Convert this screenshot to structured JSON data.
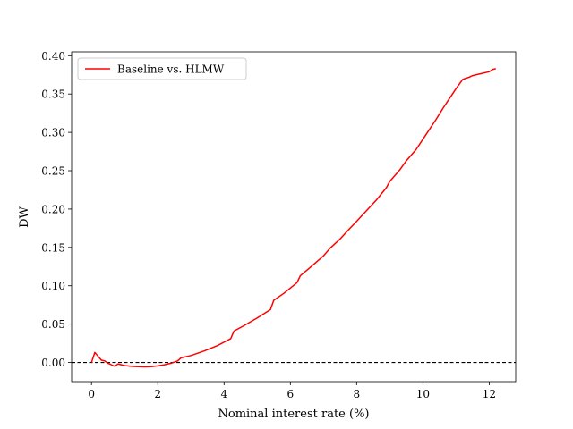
{
  "chart_data": {
    "type": "line",
    "title": "",
    "xlabel": "Nominal interest rate (%)",
    "ylabel": "DW",
    "xlim": [
      -0.6,
      12.8
    ],
    "ylim": [
      -0.025,
      0.405
    ],
    "xticks": [
      0,
      2,
      4,
      6,
      8,
      10,
      12
    ],
    "xtick_labels": [
      "0",
      "2",
      "4",
      "6",
      "8",
      "10",
      "12"
    ],
    "yticks": [
      0.0,
      0.05,
      0.1,
      0.15,
      0.2,
      0.25,
      0.3,
      0.35,
      0.4
    ],
    "ytick_labels": [
      "0.00",
      "0.05",
      "0.10",
      "0.15",
      "0.20",
      "0.25",
      "0.30",
      "0.35",
      "0.40"
    ],
    "grid": false,
    "legend_placement": "upper-left",
    "reference_line": {
      "y": 0,
      "style": "dashed",
      "color": "#000000"
    },
    "series": [
      {
        "name": "Baseline vs. HLMW",
        "color": "#ff0000",
        "x": [
          0.0,
          0.1,
          0.2,
          0.3,
          0.4,
          0.5,
          0.6,
          0.7,
          0.8,
          0.9,
          1.0,
          1.2,
          1.4,
          1.6,
          1.8,
          2.0,
          2.2,
          2.4,
          2.6,
          2.7,
          3.0,
          3.4,
          3.8,
          4.2,
          4.3,
          4.6,
          5.0,
          5.4,
          5.5,
          5.8,
          6.2,
          6.3,
          6.6,
          7.0,
          7.2,
          7.5,
          7.8,
          8.0,
          8.3,
          8.6,
          8.9,
          9.0,
          9.3,
          9.5,
          9.8,
          10.0,
          10.2,
          10.4,
          10.6,
          10.8,
          11.0,
          11.2,
          11.4,
          11.5,
          11.7,
          12.0,
          12.1,
          12.2
        ],
        "y": [
          0.0,
          0.013,
          0.008,
          0.003,
          0.002,
          -0.001,
          -0.003,
          -0.005,
          -0.002,
          -0.003,
          -0.004,
          -0.005,
          -0.0055,
          -0.0058,
          -0.0055,
          -0.0045,
          -0.003,
          -0.001,
          0.002,
          0.006,
          0.009,
          0.015,
          0.022,
          0.031,
          0.041,
          0.048,
          0.058,
          0.069,
          0.081,
          0.09,
          0.104,
          0.113,
          0.124,
          0.139,
          0.149,
          0.161,
          0.175,
          0.184,
          0.198,
          0.212,
          0.228,
          0.236,
          0.251,
          0.263,
          0.278,
          0.291,
          0.304,
          0.317,
          0.331,
          0.344,
          0.357,
          0.369,
          0.372,
          0.374,
          0.376,
          0.379,
          0.382,
          0.383
        ]
      }
    ]
  }
}
